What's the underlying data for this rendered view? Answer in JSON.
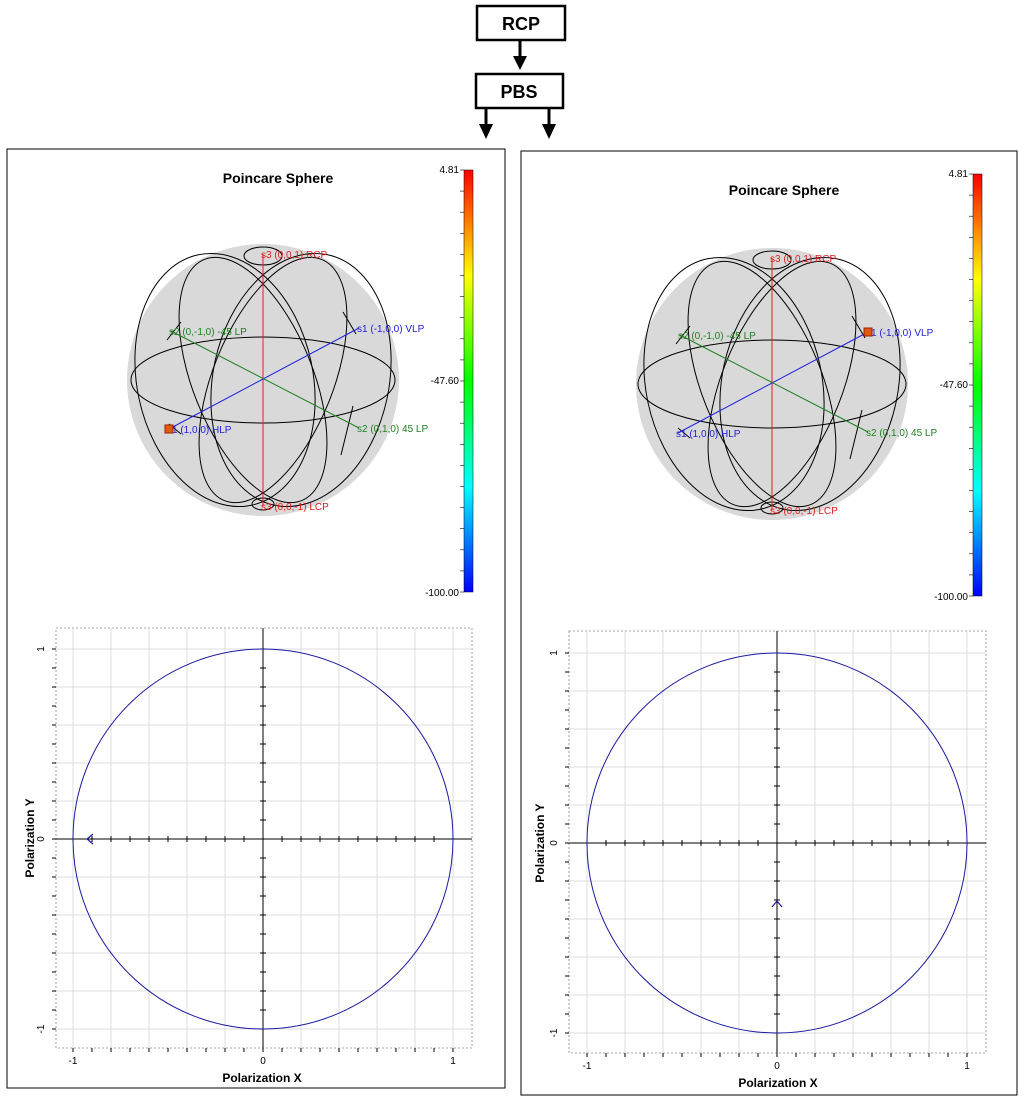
{
  "top_flow": {
    "source_label": "RCP",
    "splitter_label": "PBS"
  },
  "panels": [
    {
      "id": "left",
      "sphere": {
        "title": "Poincare Sphere",
        "labels": {
          "rcp": "s3 (0,0,1) RCP",
          "lcp": "s3 (0,0,-1) LCP",
          "vlp": "s1 (-1,0,0) VLP",
          "hlp": "s1 (1,0,0) HLP",
          "m45": "s2 (0,-1,0) -45 LP",
          "p45": "s2 (0,1,0) 45 LP"
        },
        "marker_at": "hlp"
      },
      "colorbar": {
        "max": "4.81",
        "mid": "-47.60",
        "min": "-100.00"
      },
      "polar_plot": {
        "xlabel": "Polarization X",
        "ylabel": "Polarization Y",
        "xticks": [
          "-1",
          "0",
          "1"
        ],
        "yticks": [
          "1",
          "0",
          "-1"
        ],
        "arrow": "left",
        "series_color": "#1a1aa0"
      }
    },
    {
      "id": "right",
      "sphere": {
        "title": "Poincare Sphere",
        "labels": {
          "rcp": "s3 (0,0,1) RCP",
          "lcp": "s3 (0,0,-1) LCP",
          "vlp": "s1 (-1,0,0) VLP",
          "hlp": "s1 (1,0,0) HLP",
          "m45": "s2 (0,-1,0) -45 LP",
          "p45": "s2 (0,1,0) 45 LP"
        },
        "marker_at": "vlp"
      },
      "colorbar": {
        "max": "4.81",
        "mid": "-47.60",
        "min": "-100.00"
      },
      "polar_plot": {
        "xlabel": "Polarization X",
        "ylabel": "Polarization Y",
        "xticks": [
          "-1",
          "0",
          "1"
        ],
        "yticks": [
          "1",
          "0",
          "-1"
        ],
        "arrow": "up",
        "series_color": "#1a1aa0"
      }
    }
  ],
  "colors": {
    "rcp_axis": "#e02020",
    "s1_axis": "#2020e0",
    "s2_axis": "#208020",
    "marker": "#e05a10",
    "sphere_fill": "#d9d9d9"
  }
}
